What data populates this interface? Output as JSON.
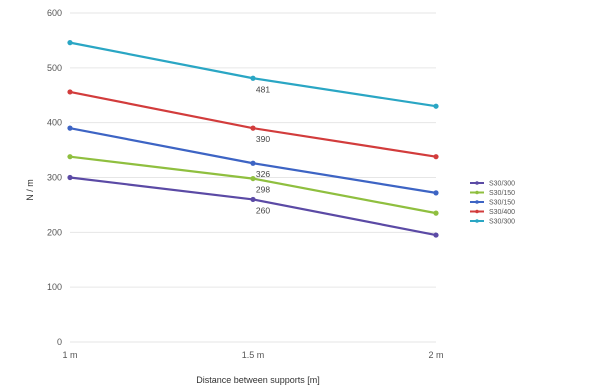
{
  "chart_data": {
    "type": "line",
    "xlabel": "Distance between supports [m]",
    "ylabel": "N / m",
    "categories": [
      "1 m",
      "1.5 m",
      "2 m"
    ],
    "ylim": [
      0,
      600
    ],
    "yticks": [
      0,
      100,
      200,
      300,
      400,
      500,
      600
    ],
    "grid": true,
    "legend_position": "right",
    "series": [
      {
        "name": "S30/300",
        "color": "#5b4aa5",
        "values": [
          300,
          260,
          195
        ]
      },
      {
        "name": "S30/150",
        "color": "#8fbf3f",
        "values": [
          338,
          298,
          235
        ]
      },
      {
        "name": "S30/150",
        "color": "#3d64c4",
        "values": [
          390,
          326,
          272
        ]
      },
      {
        "name": "S30/400",
        "color": "#d23c3c",
        "values": [
          456,
          390,
          338
        ]
      },
      {
        "name": "S30/300",
        "color": "#2aa6c4",
        "values": [
          546,
          481,
          430
        ]
      }
    ],
    "data_labels": [
      {
        "series": 0,
        "index": 1,
        "text": "260"
      },
      {
        "series": 1,
        "index": 1,
        "text": "298"
      },
      {
        "series": 2,
        "index": 1,
        "text": "326"
      },
      {
        "series": 3,
        "index": 1,
        "text": "390"
      },
      {
        "series": 4,
        "index": 1,
        "text": "481"
      }
    ]
  }
}
